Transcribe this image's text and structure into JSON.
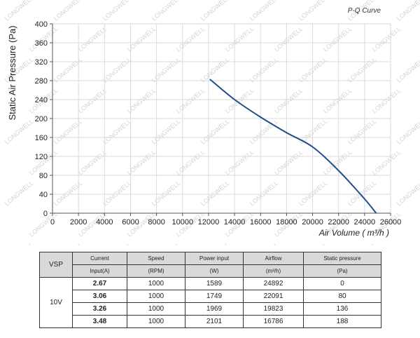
{
  "chart_data": {
    "type": "line",
    "title": "P-Q Curve",
    "xlabel": "Air Volume ( m³/h )",
    "ylabel": "Static Air Pressure  (Pa)",
    "xlim": [
      0,
      26000
    ],
    "ylim": [
      0,
      400
    ],
    "xticks": [
      "0",
      "2000",
      "4000",
      "6000",
      "8000",
      "10000",
      "12000",
      "14000",
      "16000",
      "18000",
      "20000",
      "22000",
      "24000",
      "26000"
    ],
    "yticks": [
      "0",
      "40",
      "80",
      "120",
      "160",
      "200",
      "240",
      "280",
      "320",
      "360",
      "400"
    ],
    "grid": true,
    "series": [
      {
        "color": "#1f4e8c",
        "x": [
          12100,
          14000,
          16000,
          18000,
          20000,
          22000,
          24000,
          24892
        ],
        "y": [
          283,
          240,
          203,
          170,
          140,
          90,
          30,
          0
        ]
      }
    ]
  },
  "watermark": "LONGWELL",
  "table": {
    "headers": [
      {
        "l1": "VSP",
        "l2": ""
      },
      {
        "l1": "Current",
        "l2": "Input(A)"
      },
      {
        "l1": "Speed",
        "l2": "(RPM)"
      },
      {
        "l1": "Power input",
        "l2": "(W)"
      },
      {
        "l1": "Airflow",
        "l2": "(m³/h)"
      },
      {
        "l1": "Static pressure",
        "l2": "(Pa)"
      }
    ],
    "vsp": "10V",
    "rows": [
      {
        "current": "2.67",
        "speed": "1000",
        "power": "1589",
        "airflow": "24892",
        "pressure": "0"
      },
      {
        "current": "3.06",
        "speed": "1000",
        "power": "1749",
        "airflow": "22091",
        "pressure": "80"
      },
      {
        "current": "3.26",
        "speed": "1000",
        "power": "1969",
        "airflow": "19823",
        "pressure": "136"
      },
      {
        "current": "3.48",
        "speed": "1000",
        "power": "2101",
        "airflow": "16786",
        "pressure": "188"
      }
    ]
  }
}
